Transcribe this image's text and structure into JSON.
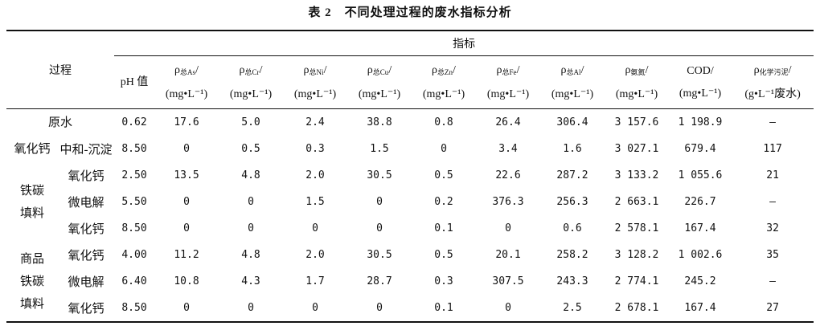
{
  "title": "表 2　不同处理过程的废水指标分析",
  "table": {
    "process_header": "过程",
    "index_header": "指标",
    "columns": [
      {
        "main": "pH 值"
      },
      {
        "main": "ρ",
        "sub": "总As",
        "suffix": "/",
        "unit": "(mg•L⁻¹)"
      },
      {
        "main": "ρ",
        "sub": "总Cr",
        "suffix": "/",
        "unit": "(mg•L⁻¹)"
      },
      {
        "main": "ρ",
        "sub": "总Ni",
        "suffix": "/",
        "unit": "(mg•L⁻¹)"
      },
      {
        "main": "ρ",
        "sub": "总Cu",
        "suffix": "/",
        "unit": "(mg•L⁻¹)"
      },
      {
        "main": "ρ",
        "sub": "总Zn",
        "suffix": "/",
        "unit": "(mg•L⁻¹)"
      },
      {
        "main": "ρ",
        "sub": "总Fe",
        "suffix": "/",
        "unit": "(mg•L⁻¹)"
      },
      {
        "main": "ρ",
        "sub": "总Al",
        "suffix": "/",
        "unit": "(mg•L⁻¹)"
      },
      {
        "main": "ρ",
        "sub": "氨氮",
        "suffix": "/",
        "unit": "(mg•L⁻¹)"
      },
      {
        "main": "COD/",
        "unit": "(mg•L⁻¹)"
      },
      {
        "main": "ρ",
        "sub": "化学污泥",
        "suffix": "/",
        "unit": "(g•L⁻¹废水)"
      }
    ],
    "groups": [
      {
        "label": [
          "原水"
        ],
        "rows": [
          {
            "values": [
              "0.62",
              "17.6",
              "5.0",
              "2.4",
              "38.8",
              "0.8",
              "26.4",
              "306.4",
              "3 157.6",
              "1 198.9",
              "—"
            ]
          }
        ]
      },
      {
        "label": [
          "氧化钙"
        ],
        "rows": [
          {
            "process": "中和-沉淀",
            "values": [
              "8.50",
              "0",
              "0.5",
              "0.3",
              "1.5",
              "0",
              "3.4",
              "1.6",
              "3 027.1",
              "679.4",
              "117"
            ]
          }
        ]
      },
      {
        "label": [
          "铁碳",
          "填料"
        ],
        "rows": [
          {
            "process": "氧化钙",
            "values": [
              "2.50",
              "13.5",
              "4.8",
              "2.0",
              "30.5",
              "0.5",
              "22.6",
              "287.2",
              "3 133.2",
              "1 055.6",
              "21"
            ]
          },
          {
            "process": "微电解",
            "values": [
              "5.50",
              "0",
              "0",
              "1.5",
              "0",
              "0.2",
              "376.3",
              "256.3",
              "2 663.1",
              "226.7",
              "—"
            ]
          },
          {
            "process": "氧化钙",
            "values": [
              "8.50",
              "0",
              "0",
              "0",
              "0",
              "0.1",
              "0",
              "0.6",
              "2 578.1",
              "167.4",
              "32"
            ]
          }
        ]
      },
      {
        "label": [
          "商品",
          "铁碳",
          "填料"
        ],
        "rows": [
          {
            "process": "氧化钙",
            "values": [
              "4.00",
              "11.2",
              "4.8",
              "2.0",
              "30.5",
              "0.5",
              "20.1",
              "258.2",
              "3 128.2",
              "1 002.6",
              "35"
            ]
          },
          {
            "process": "微电解",
            "values": [
              "6.40",
              "10.8",
              "4.3",
              "1.7",
              "28.7",
              "0.3",
              "307.5",
              "243.3",
              "2 774.1",
              "245.2",
              "—"
            ]
          },
          {
            "process": "氧化钙",
            "values": [
              "8.50",
              "0",
              "0",
              "0",
              "0",
              "0.1",
              "0",
              "2.5",
              "2 678.1",
              "167.4",
              "27"
            ]
          }
        ]
      }
    ]
  }
}
